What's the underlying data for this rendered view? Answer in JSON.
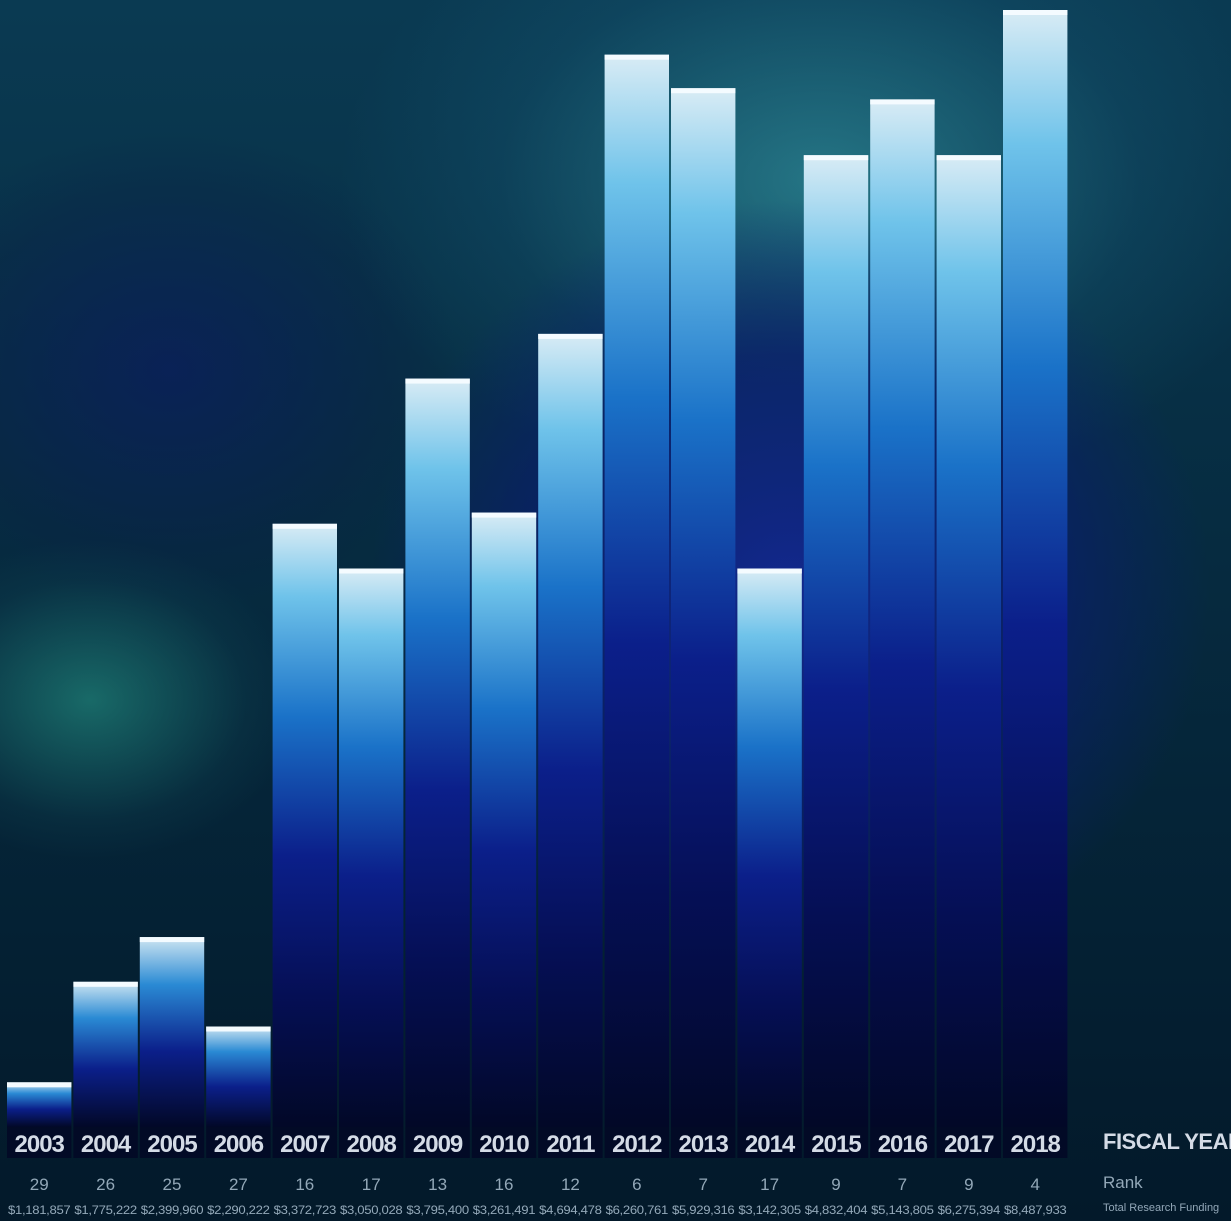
{
  "chart_data": {
    "type": "bar",
    "categories": [
      "2003",
      "2004",
      "2005",
      "2006",
      "2007",
      "2008",
      "2009",
      "2010",
      "2011",
      "2012",
      "2013",
      "2014",
      "2015",
      "2016",
      "2017",
      "2018"
    ],
    "values": [
      1181857,
      1775222,
      2399960,
      2290222,
      3372723,
      3050028,
      3795400,
      3261491,
      4694478,
      6260761,
      5929316,
      3142305,
      4832404,
      5143805,
      6275394,
      8487933
    ],
    "bar_heights_relative": [
      0.04,
      0.13,
      0.17,
      0.09,
      0.54,
      0.5,
      0.67,
      0.55,
      0.71,
      0.96,
      0.93,
      0.5,
      0.87,
      0.92,
      0.87,
      1.0
    ],
    "ranks": [
      "29",
      "26",
      "25",
      "27",
      "16",
      "17",
      "13",
      "16",
      "12",
      "6",
      "7",
      "17",
      "9",
      "7",
      "9",
      "4"
    ],
    "funding_labels": [
      "$1,181,857",
      "$1,775,222",
      "$2,399,960",
      "$2,290,222",
      "$3,372,723",
      "$3,050,028",
      "$3,795,400",
      "$3,261,491",
      "$4,694,478",
      "$6,260,761",
      "$5,929,316",
      "$3,142,305",
      "$4,832,404",
      "$5,143,805",
      "$6,275,394",
      "$8,487,933"
    ],
    "xlabel": "FISCAL YEAR",
    "row_labels": {
      "rank": "Rank",
      "funding": "Total Research Funding"
    },
    "colors": {
      "bar_top": "#e8f4fa",
      "bar_mid": "#1a7fd0",
      "bar_deep": "#0a1a8a",
      "bar_base": "#020a28"
    }
  }
}
